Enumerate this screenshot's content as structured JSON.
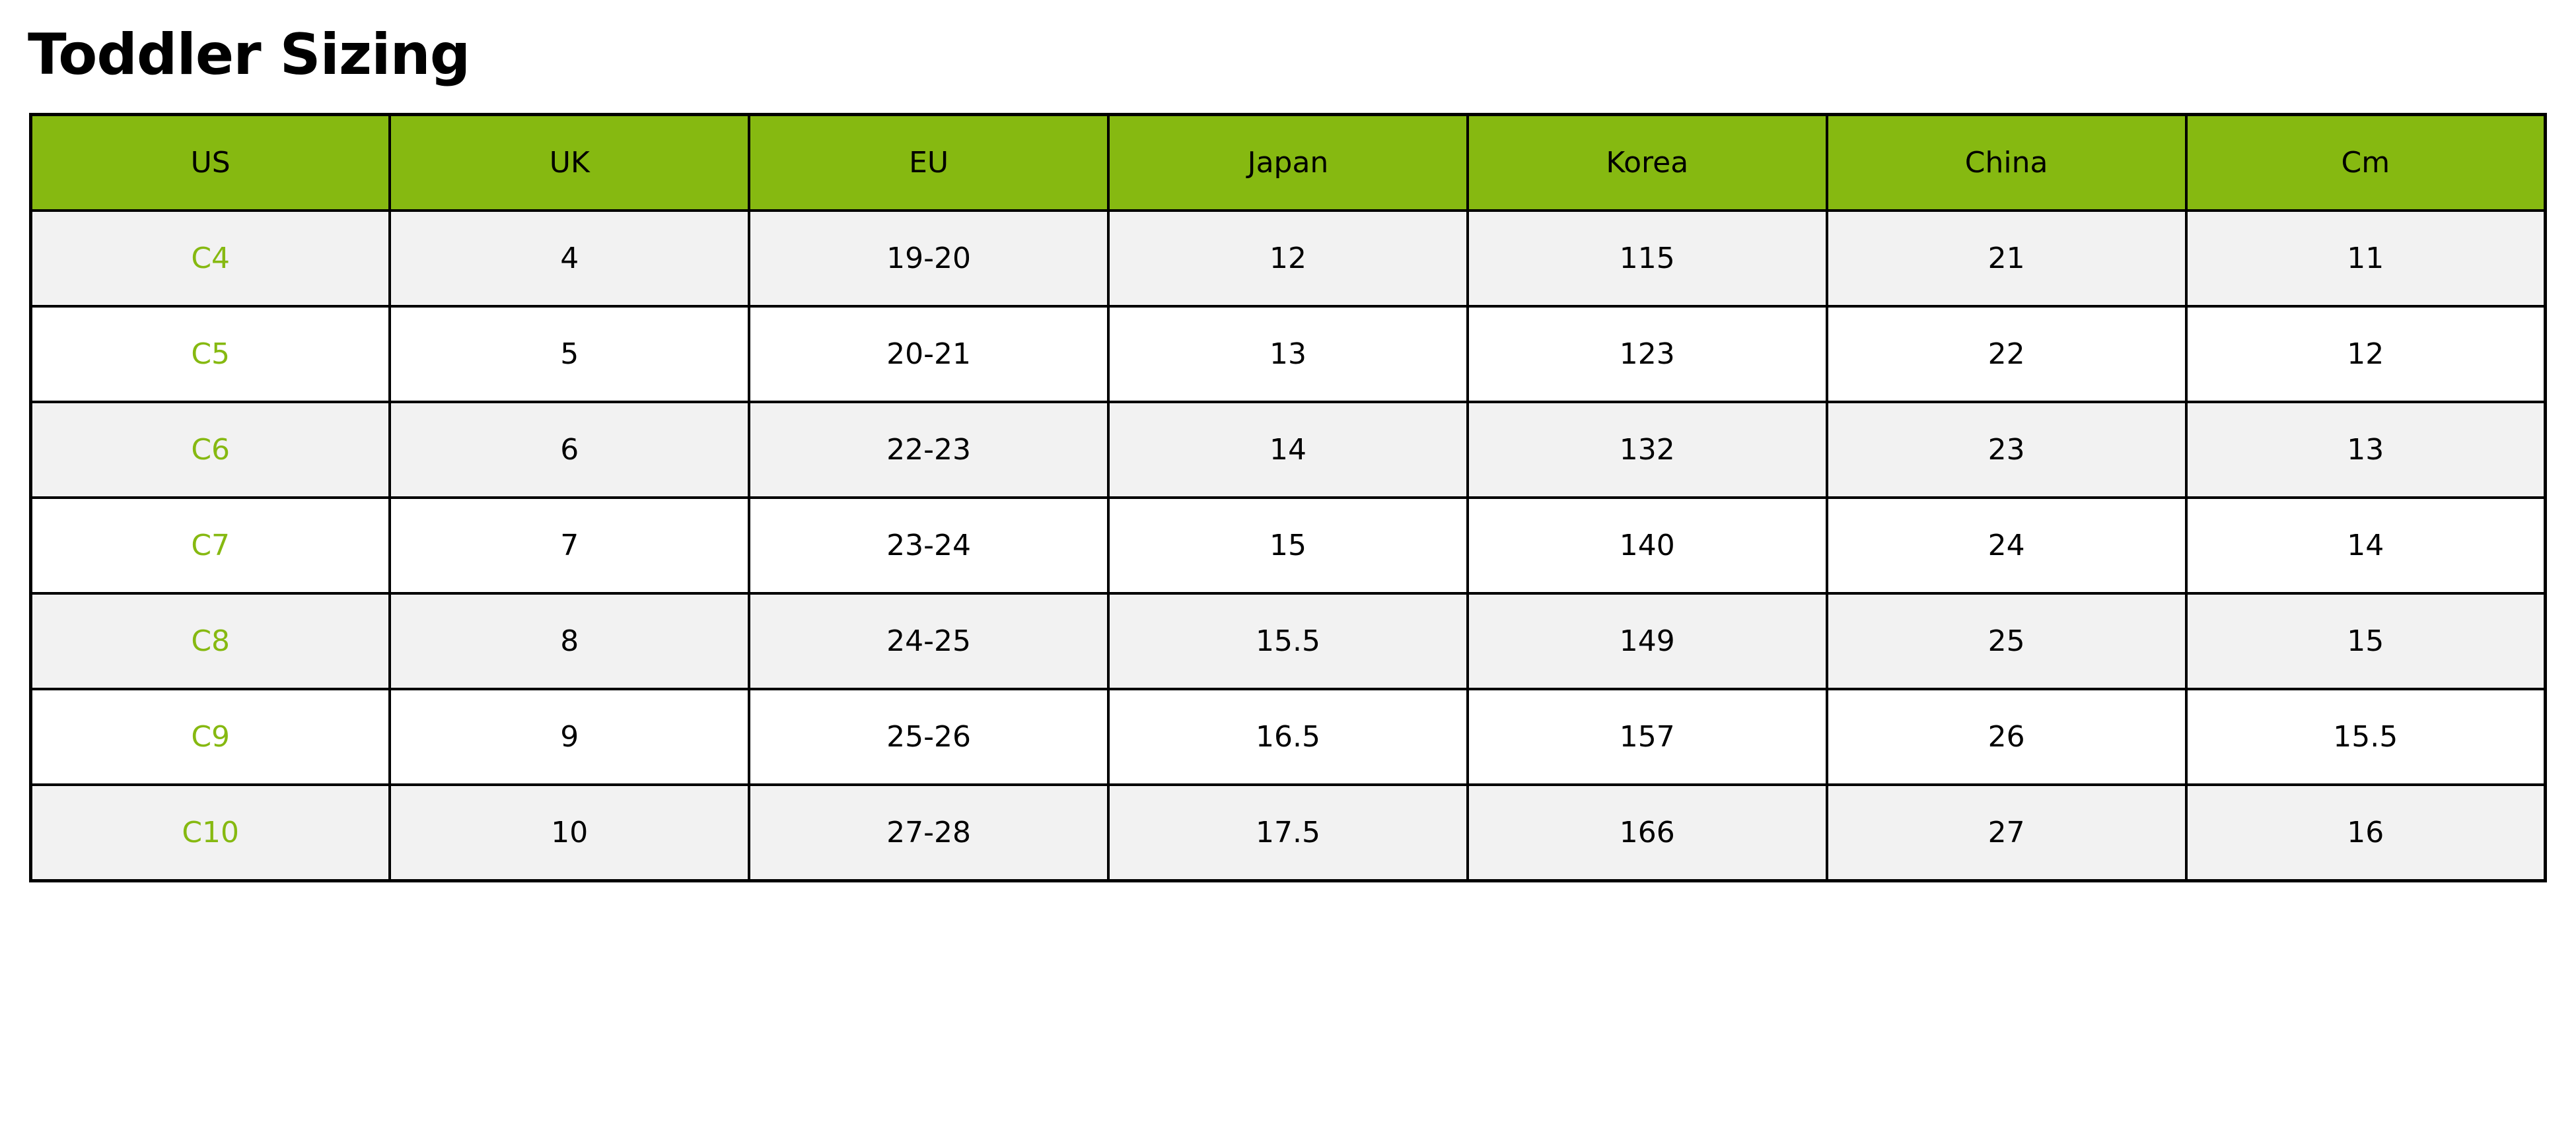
{
  "title": "Toddler Sizing",
  "accent_color": "#86b911",
  "table": {
    "headers": [
      "US",
      "UK",
      "EU",
      "Japan",
      "Korea",
      "China",
      "Cm"
    ],
    "rows": [
      [
        "C4",
        "4",
        "19-20",
        "12",
        "115",
        "21",
        "11"
      ],
      [
        "C5",
        "5",
        "20-21",
        "13",
        "123",
        "22",
        "12"
      ],
      [
        "C6",
        "6",
        "22-23",
        "14",
        "132",
        "23",
        "13"
      ],
      [
        "C7",
        "7",
        "23-24",
        "15",
        "140",
        "24",
        "14"
      ],
      [
        "C8",
        "8",
        "24-25",
        "15.5",
        "149",
        "25",
        "15"
      ],
      [
        "C9",
        "9",
        "25-26",
        "16.5",
        "157",
        "26",
        "15.5"
      ],
      [
        "C10",
        "10",
        "27-28",
        "17.5",
        "166",
        "27",
        "16"
      ]
    ]
  }
}
